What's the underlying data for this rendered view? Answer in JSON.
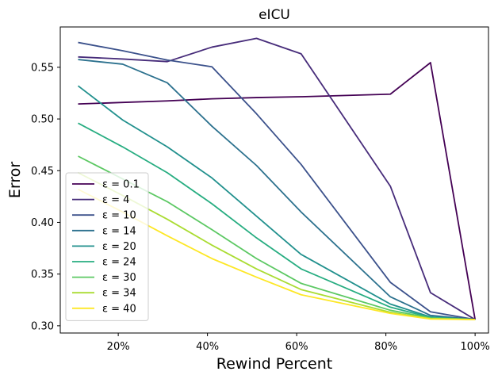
{
  "chart_data": {
    "type": "line",
    "title": "eICU",
    "xlabel": "Rewind Percent",
    "ylabel": "Error",
    "xlim": [
      7,
      103
    ],
    "ylim": [
      0.293,
      0.589
    ],
    "x_ticks": [
      {
        "value": 20,
        "label": "20%"
      },
      {
        "value": 40,
        "label": "40%"
      },
      {
        "value": 60,
        "label": "60%"
      },
      {
        "value": 80,
        "label": "80%"
      },
      {
        "value": 100,
        "label": "100%"
      }
    ],
    "y_ticks": [
      {
        "value": 0.3,
        "label": "0.30"
      },
      {
        "value": 0.35,
        "label": "0.35"
      },
      {
        "value": 0.4,
        "label": "0.40"
      },
      {
        "value": 0.45,
        "label": "0.45"
      },
      {
        "value": 0.5,
        "label": "0.50"
      },
      {
        "value": 0.55,
        "label": "0.55"
      }
    ],
    "grid": false,
    "legend_position": "lower-left",
    "series": [
      {
        "name": "ε = 0.1",
        "color": "#440154",
        "points": [
          [
            11,
            0.5145
          ],
          [
            21,
            0.516
          ],
          [
            31,
            0.5175
          ],
          [
            41,
            0.5195
          ],
          [
            51,
            0.5207
          ],
          [
            61,
            0.5215
          ],
          [
            81,
            0.524
          ],
          [
            90,
            0.5545
          ],
          [
            100,
            0.306
          ]
        ]
      },
      {
        "name": "ε = 4",
        "color": "#472c7a",
        "points": [
          [
            11,
            0.56
          ],
          [
            21,
            0.558
          ],
          [
            31,
            0.5555
          ],
          [
            41,
            0.5695
          ],
          [
            51,
            0.578
          ],
          [
            61,
            0.563
          ],
          [
            81,
            0.435
          ],
          [
            90,
            0.332
          ],
          [
            100,
            0.306
          ]
        ]
      },
      {
        "name": "ε = 10",
        "color": "#3b518b",
        "points": [
          [
            11,
            0.574
          ],
          [
            21,
            0.566
          ],
          [
            31,
            0.557
          ],
          [
            41,
            0.5505
          ],
          [
            51,
            0.505
          ],
          [
            61,
            0.456
          ],
          [
            81,
            0.342
          ],
          [
            90,
            0.3135
          ],
          [
            100,
            0.306
          ]
        ]
      },
      {
        "name": "ε = 14",
        "color": "#2c718e",
        "points": [
          [
            11,
            0.5575
          ],
          [
            21,
            0.553
          ],
          [
            31,
            0.535
          ],
          [
            41,
            0.493
          ],
          [
            51,
            0.455
          ],
          [
            61,
            0.41
          ],
          [
            81,
            0.328
          ],
          [
            90,
            0.31
          ],
          [
            100,
            0.306
          ]
        ]
      },
      {
        "name": "ε = 20",
        "color": "#21908d",
        "points": [
          [
            11,
            0.532
          ],
          [
            21,
            0.499
          ],
          [
            31,
            0.473
          ],
          [
            41,
            0.443
          ],
          [
            51,
            0.406
          ],
          [
            61,
            0.369
          ],
          [
            81,
            0.321
          ],
          [
            90,
            0.3085
          ],
          [
            100,
            0.306
          ]
        ]
      },
      {
        "name": "ε = 24",
        "color": "#27ad81",
        "points": [
          [
            11,
            0.496
          ],
          [
            21,
            0.473
          ],
          [
            31,
            0.448
          ],
          [
            41,
            0.418
          ],
          [
            51,
            0.385
          ],
          [
            61,
            0.355
          ],
          [
            81,
            0.318
          ],
          [
            90,
            0.308
          ],
          [
            100,
            0.306
          ]
        ]
      },
      {
        "name": "ε = 30",
        "color": "#5cc863",
        "points": [
          [
            11,
            0.464
          ],
          [
            21,
            0.442
          ],
          [
            31,
            0.42
          ],
          [
            41,
            0.393
          ],
          [
            51,
            0.365
          ],
          [
            61,
            0.341
          ],
          [
            81,
            0.315
          ],
          [
            90,
            0.3075
          ],
          [
            100,
            0.306
          ]
        ]
      },
      {
        "name": "ε = 34",
        "color": "#aadc32",
        "points": [
          [
            11,
            0.448
          ],
          [
            21,
            0.426
          ],
          [
            31,
            0.403
          ],
          [
            41,
            0.378
          ],
          [
            51,
            0.355
          ],
          [
            61,
            0.335
          ],
          [
            81,
            0.313
          ],
          [
            90,
            0.307
          ],
          [
            100,
            0.306
          ]
        ]
      },
      {
        "name": "ε = 40",
        "color": "#fde725",
        "points": [
          [
            11,
            0.432
          ],
          [
            21,
            0.41
          ],
          [
            31,
            0.387
          ],
          [
            41,
            0.365
          ],
          [
            51,
            0.347
          ],
          [
            61,
            0.33
          ],
          [
            81,
            0.312
          ],
          [
            90,
            0.3065
          ],
          [
            100,
            0.306
          ]
        ]
      }
    ]
  }
}
